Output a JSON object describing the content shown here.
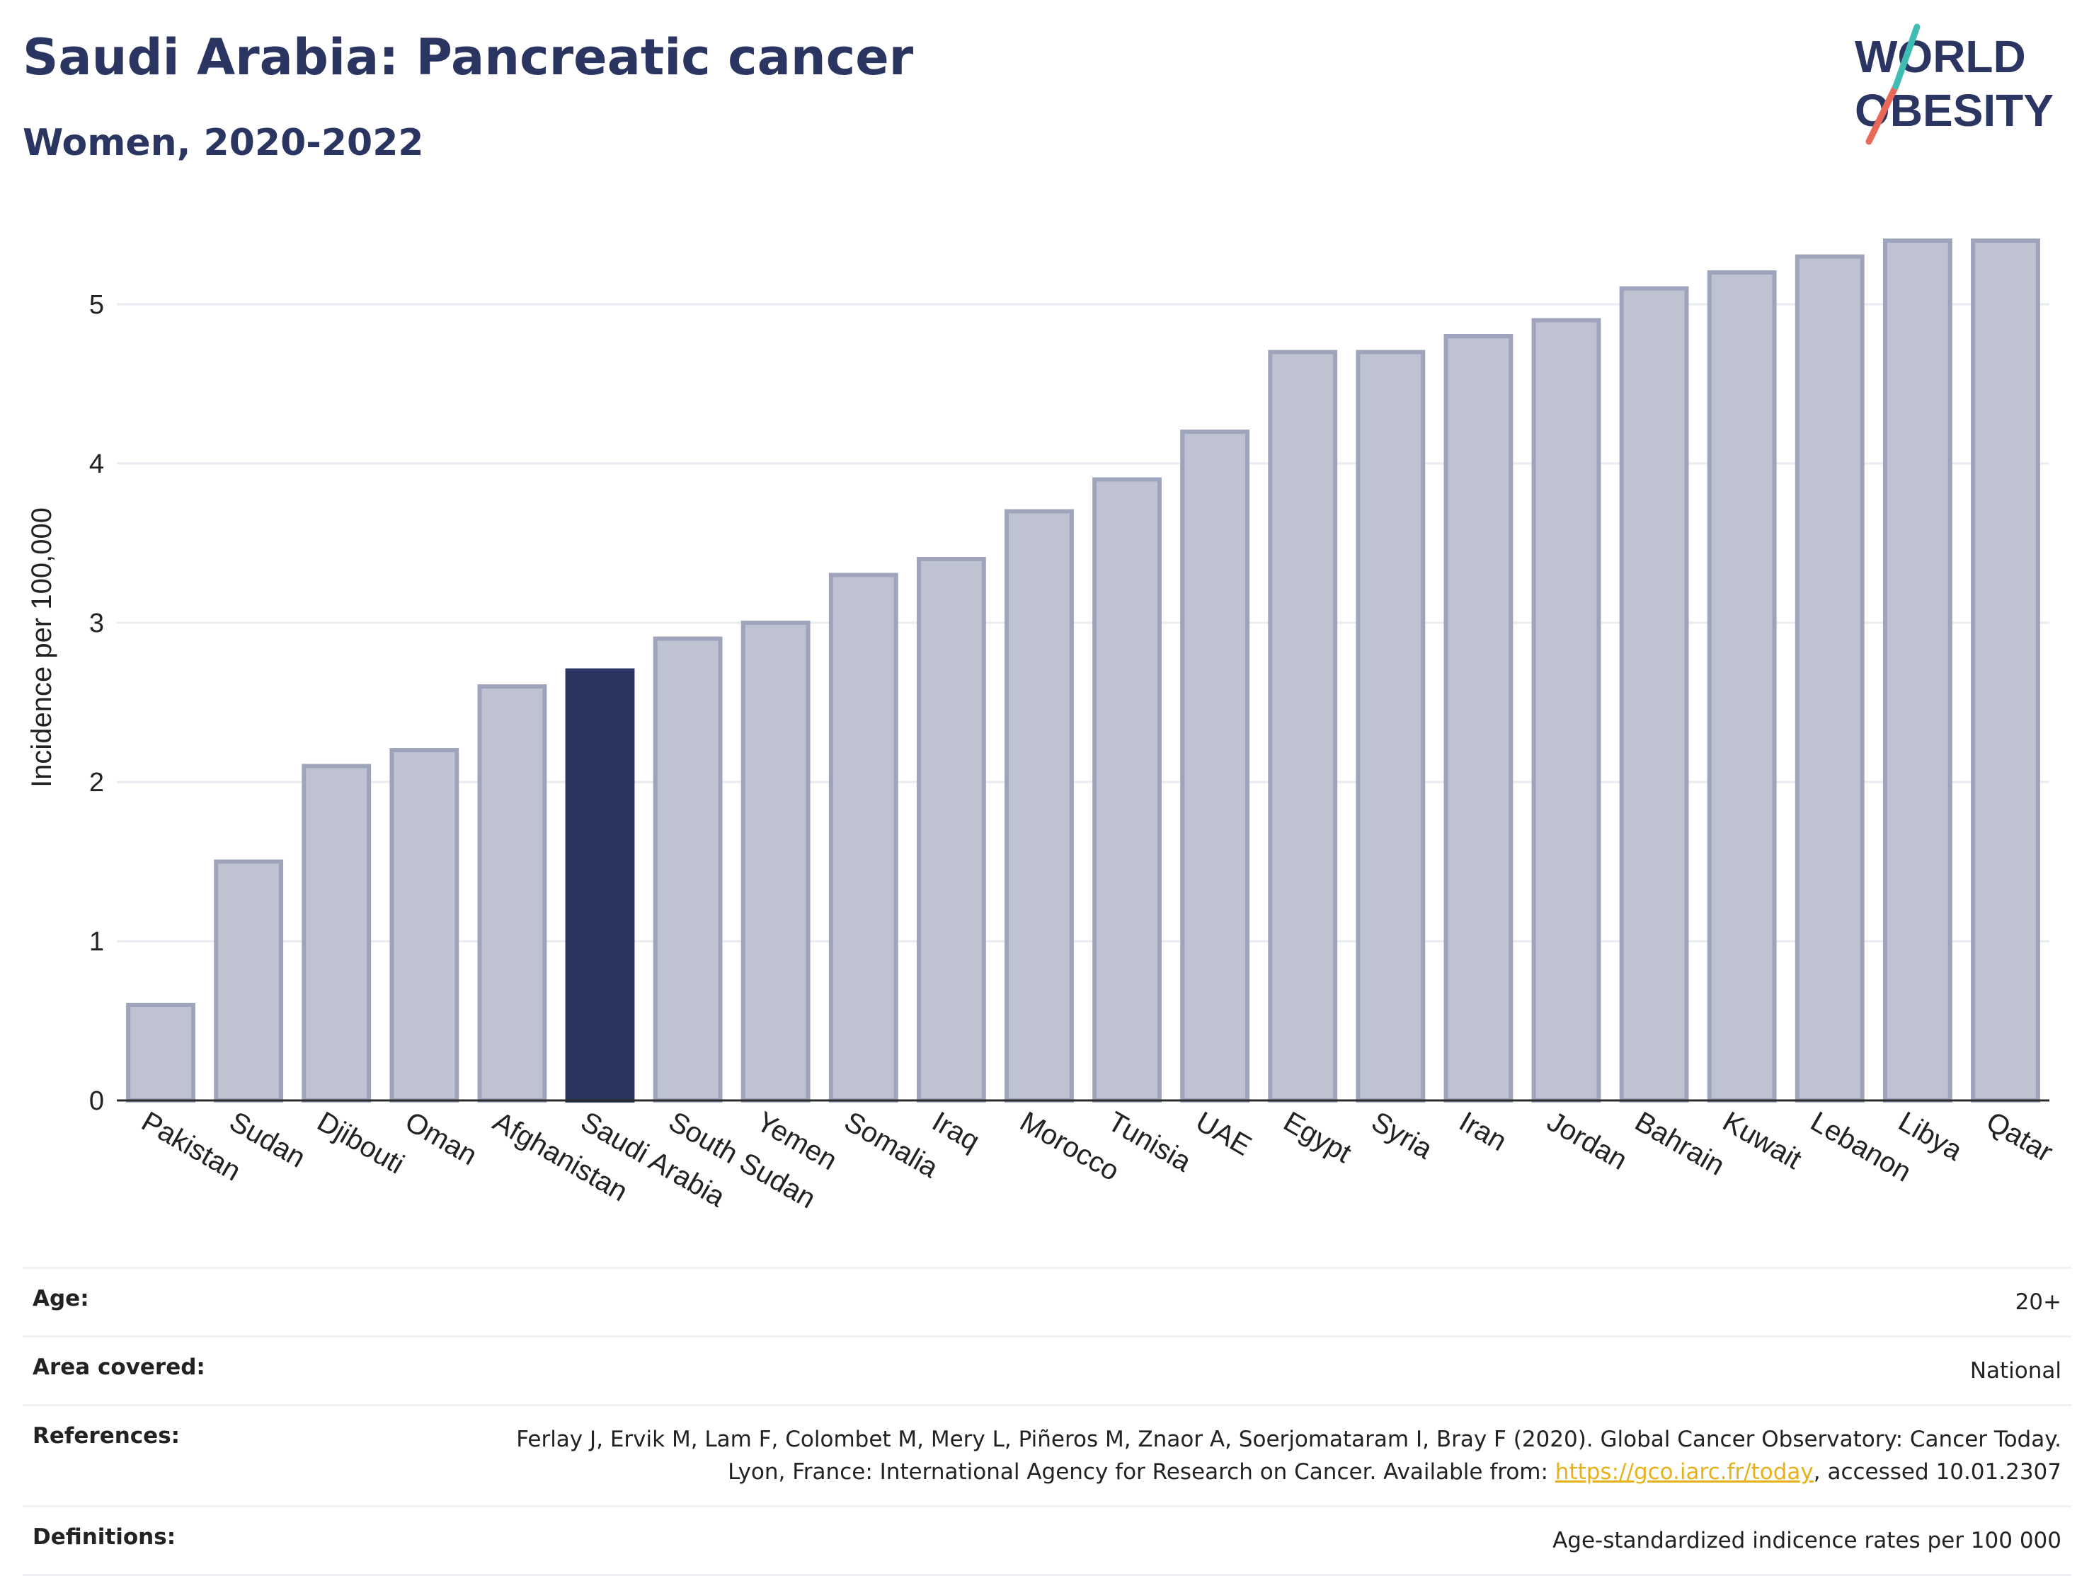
{
  "header": {
    "title": "Saudi Arabia: Pancreatic cancer",
    "subtitle": "Women, 2020-2022"
  },
  "logo": {
    "line1": "WORLD",
    "line2": "OBESITY"
  },
  "colors": {
    "bar": "#bfc3d1",
    "bar_border": "#9ea4bb",
    "highlight": "#2b3561",
    "grid": "#e9ebf0",
    "axis": "#2b2b2b"
  },
  "chart_data": {
    "type": "bar",
    "ylabel": "Incidence per 100,000",
    "xlabel": "",
    "ylim": [
      0,
      5.6
    ],
    "yticks": [
      0,
      1,
      2,
      3,
      4,
      5
    ],
    "grid": true,
    "highlight": "Saudi Arabia",
    "categories": [
      "Pakistan",
      "Sudan",
      "Djibouti",
      "Oman",
      "Afghanistan",
      "Saudi Arabia",
      "South Sudan",
      "Yemen",
      "Somalia",
      "Iraq",
      "Morocco",
      "Tunisia",
      "UAE",
      "Egypt",
      "Syria",
      "Iran",
      "Jordan",
      "Bahrain",
      "Kuwait",
      "Lebanon",
      "Libya",
      "Qatar"
    ],
    "values": [
      0.6,
      1.5,
      2.1,
      2.2,
      2.6,
      2.7,
      2.9,
      3.0,
      3.3,
      3.4,
      3.7,
      3.9,
      4.2,
      4.7,
      4.7,
      4.8,
      4.9,
      5.1,
      5.2,
      5.3,
      5.4,
      5.4
    ]
  },
  "info": {
    "age_label": "Age:",
    "age_value": "20+",
    "area_label": "Area covered:",
    "area_value": "National",
    "refs_label": "References:",
    "refs_text": "Ferlay J, Ervik M, Lam F, Colombet M, Mery L, Piñeros M, Znaor A, Soerjomataram I, Bray F (2020). Global Cancer Observatory: Cancer Today. Lyon, France: International Agency for Research on Cancer. Available from: ",
    "refs_link": "https://gco.iarc.fr/today",
    "refs_tail": ", accessed 10.01.2307",
    "defs_label": "Definitions:",
    "defs_value": "Age-standardized indicence rates per 100 000"
  }
}
